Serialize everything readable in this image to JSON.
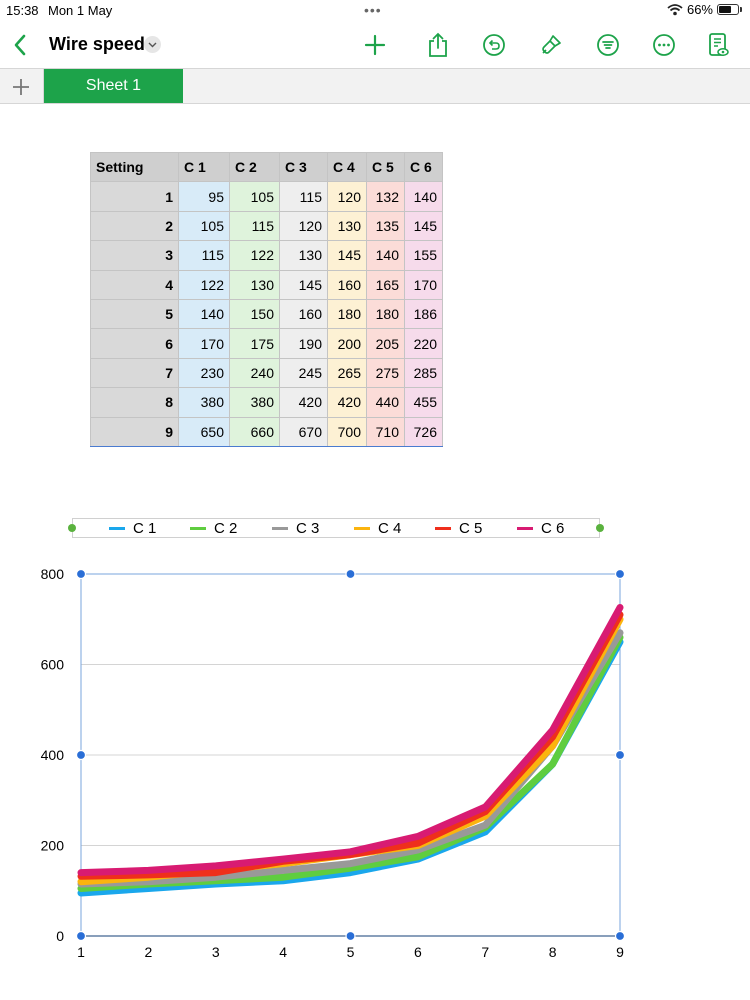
{
  "status_bar": {
    "time": "15:38",
    "date": "Mon 1 May",
    "battery_text": "66%",
    "battery_level": 0.66
  },
  "toolbar": {
    "title": "Wire speed",
    "accent": "#1da34a",
    "icons": [
      "back-chevron-icon",
      "title-chevron-icon",
      "add-icon",
      "share-icon",
      "undo-icon",
      "format-brush-icon",
      "filter-icon",
      "more-icon",
      "document-view-icon"
    ]
  },
  "tabs": [
    {
      "label": "Sheet 1",
      "selected": true
    }
  ],
  "table": {
    "headers": [
      "Setting",
      "C 1",
      "C 2",
      "C 3",
      "C 4",
      "C 5",
      "C 6"
    ],
    "rows": [
      [
        "1",
        "95",
        "105",
        "115",
        "120",
        "132",
        "140"
      ],
      [
        "2",
        "105",
        "115",
        "120",
        "130",
        "135",
        "145"
      ],
      [
        "3",
        "115",
        "122",
        "130",
        "145",
        "140",
        "155"
      ],
      [
        "4",
        "122",
        "130",
        "145",
        "160",
        "165",
        "170"
      ],
      [
        "5",
        "140",
        "150",
        "160",
        "180",
        "180",
        "186"
      ],
      [
        "6",
        "170",
        "175",
        "190",
        "200",
        "205",
        "220"
      ],
      [
        "7",
        "230",
        "240",
        "245",
        "265",
        "275",
        "285"
      ],
      [
        "8",
        "380",
        "380",
        "420",
        "420",
        "440",
        "455"
      ],
      [
        "9",
        "650",
        "660",
        "670",
        "700",
        "710",
        "726"
      ]
    ]
  },
  "chart_data": {
    "type": "line",
    "x": [
      1,
      2,
      3,
      4,
      5,
      6,
      7,
      8,
      9
    ],
    "xlim": [
      1,
      9
    ],
    "ylim": [
      0,
      800
    ],
    "yticks": [
      0,
      200,
      400,
      600,
      800
    ],
    "grid": true,
    "legend_position": "top",
    "series": [
      {
        "name": "C 1",
        "color": "#1aa7ec",
        "values": [
          95,
          105,
          115,
          122,
          140,
          170,
          230,
          380,
          650
        ]
      },
      {
        "name": "C 2",
        "color": "#5fcd3f",
        "values": [
          105,
          115,
          122,
          130,
          150,
          175,
          240,
          380,
          660
        ]
      },
      {
        "name": "C 3",
        "color": "#999999",
        "values": [
          115,
          120,
          130,
          145,
          160,
          190,
          245,
          420,
          670
        ]
      },
      {
        "name": "C 4",
        "color": "#fbb40e",
        "values": [
          120,
          130,
          145,
          160,
          180,
          200,
          265,
          420,
          700
        ]
      },
      {
        "name": "C 5",
        "color": "#ef2f1c",
        "values": [
          132,
          135,
          140,
          165,
          180,
          205,
          275,
          440,
          710
        ]
      },
      {
        "name": "C 6",
        "color": "#d81b72",
        "values": [
          140,
          145,
          155,
          170,
          186,
          220,
          285,
          455,
          726
        ]
      }
    ]
  }
}
